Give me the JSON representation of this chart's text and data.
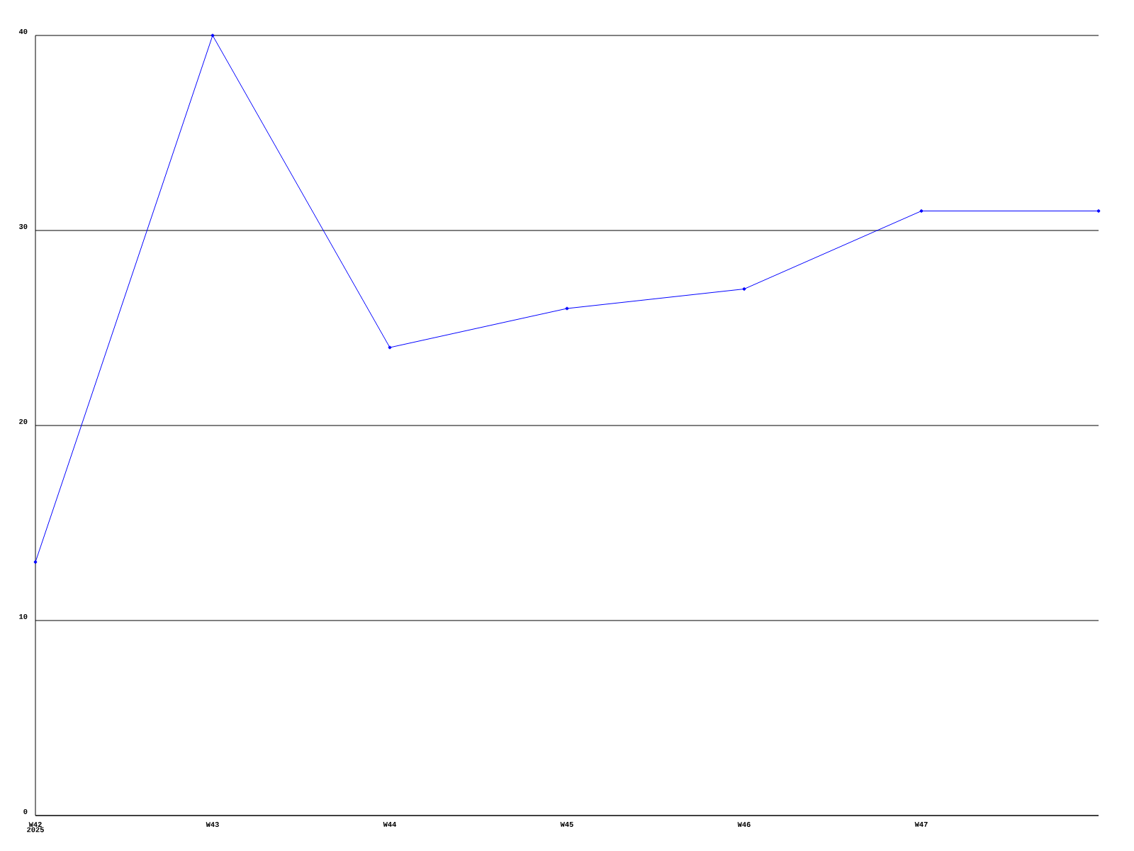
{
  "chart_data": {
    "type": "line",
    "categories": [
      "W42",
      "W43",
      "W44",
      "W45",
      "W46",
      "W47",
      null
    ],
    "series": [
      {
        "color": "#0000ff",
        "values": [
          13,
          40,
          24,
          26,
          27,
          31,
          31
        ]
      }
    ],
    "ylim": [
      0,
      40
    ],
    "yticks": [
      0,
      10,
      20,
      30,
      40
    ],
    "grid": "y",
    "marker": "circle",
    "line_style": "solid",
    "annotations": [
      "2025"
    ]
  }
}
